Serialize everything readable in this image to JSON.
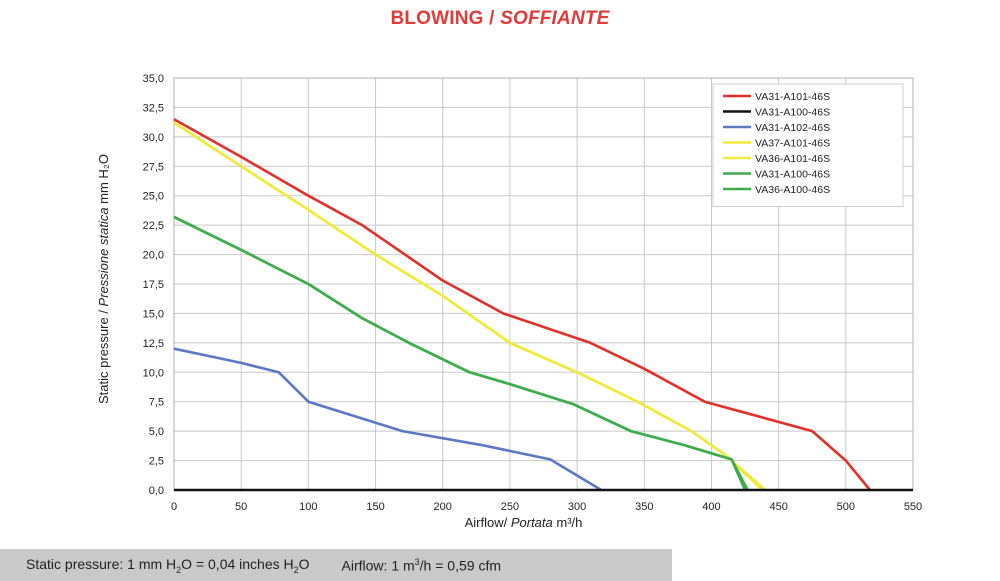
{
  "title": {
    "main": "BLOWING / ",
    "italic": "SOFFIANTE",
    "color": "#e03a3a"
  },
  "footer": {
    "pressure_prefix": "Static pressure: 1 mm H",
    "pressure_sub1": "2",
    "pressure_mid": "O = 0,04 inches H",
    "pressure_sub2": "2",
    "pressure_suffix": "O",
    "airflow_prefix": "Airflow: 1 m",
    "airflow_sup": "3",
    "airflow_suffix": "/h = 0,59 cfm"
  },
  "chart_data": {
    "type": "line",
    "title": "BLOWING / SOFFIANTE",
    "xlabel": {
      "normal": "Airflow/ ",
      "italic": "Portata",
      "unit": " m³/h"
    },
    "ylabel": {
      "normal": "Static pressure / ",
      "italic": "Pressione statica",
      "unit": " mm H₂O"
    },
    "xlim": [
      0,
      550
    ],
    "ylim": [
      0,
      35
    ],
    "x_ticks": [
      "0",
      "50",
      "100",
      "150",
      "200",
      "250",
      "300",
      "350",
      "400",
      "450",
      "500",
      "550"
    ],
    "y_ticks": [
      "0,0",
      "2,5",
      "5,0",
      "7,5",
      "10,0",
      "12,5",
      "15,0",
      "17,5",
      "20,0",
      "22,5",
      "25,0",
      "27,5",
      "30,0",
      "32,5",
      "35,0"
    ],
    "grid": true,
    "legend_position": "top-right",
    "series": [
      {
        "name": "VA31-A101-46S",
        "color": "#e0302a",
        "points": [
          [
            0,
            31.5
          ],
          [
            50,
            28.3
          ],
          [
            100,
            25.0
          ],
          [
            140,
            22.5
          ],
          [
            200,
            17.8
          ],
          [
            245,
            15.0
          ],
          [
            310,
            12.5
          ],
          [
            350,
            10.3
          ],
          [
            395,
            7.5
          ],
          [
            475,
            5.0
          ],
          [
            500,
            2.5
          ],
          [
            518,
            0
          ]
        ]
      },
      {
        "name": "VA31-A100-46S",
        "color": "#111111",
        "points": [
          [
            0,
            0
          ],
          [
            550,
            0
          ]
        ]
      },
      {
        "name": "VA31-A102-46S",
        "color": "#5b79c2",
        "points": [
          [
            0,
            12.0
          ],
          [
            50,
            10.8
          ],
          [
            78,
            10.0
          ],
          [
            100,
            7.5
          ],
          [
            170,
            5.0
          ],
          [
            230,
            3.8
          ],
          [
            280,
            2.6
          ],
          [
            318,
            0
          ]
        ]
      },
      {
        "name": "VA37-A101-46S",
        "color": "#eeea3c",
        "points": [
          [
            0,
            31.2
          ],
          [
            50,
            27.5
          ],
          [
            100,
            23.8
          ],
          [
            150,
            20.0
          ],
          [
            200,
            16.5
          ],
          [
            250,
            12.5
          ],
          [
            300,
            10.0
          ],
          [
            345,
            7.5
          ],
          [
            385,
            5.0
          ],
          [
            410,
            3.0
          ],
          [
            438,
            0
          ]
        ]
      },
      {
        "name": "VA36-A101-46S",
        "color": "#eeea3c",
        "points": [
          [
            0,
            31.2
          ],
          [
            50,
            27.5
          ],
          [
            100,
            23.8
          ],
          [
            150,
            20.0
          ],
          [
            200,
            16.5
          ],
          [
            250,
            12.5
          ],
          [
            300,
            10.0
          ],
          [
            345,
            7.5
          ],
          [
            385,
            5.0
          ],
          [
            410,
            3.0
          ],
          [
            440,
            0
          ]
        ]
      },
      {
        "name": "VA31-A100-46S",
        "color": "#3fac4c",
        "points": [
          [
            0,
            23.2
          ],
          [
            50,
            20.4
          ],
          [
            100,
            17.5
          ],
          [
            140,
            14.6
          ],
          [
            175,
            12.5
          ],
          [
            220,
            10.0
          ],
          [
            250,
            9.0
          ],
          [
            297,
            7.3
          ],
          [
            340,
            5.0
          ],
          [
            380,
            3.8
          ],
          [
            415,
            2.6
          ],
          [
            425,
            0
          ]
        ]
      },
      {
        "name": "VA36-A100-46S",
        "color": "#3fac4c",
        "points": [
          [
            0,
            23.2
          ],
          [
            50,
            20.4
          ],
          [
            100,
            17.5
          ],
          [
            140,
            14.6
          ],
          [
            175,
            12.5
          ],
          [
            220,
            10.0
          ],
          [
            250,
            9.0
          ],
          [
            297,
            7.3
          ],
          [
            340,
            5.0
          ],
          [
            380,
            3.8
          ],
          [
            415,
            2.6
          ],
          [
            427,
            0
          ]
        ]
      }
    ]
  }
}
